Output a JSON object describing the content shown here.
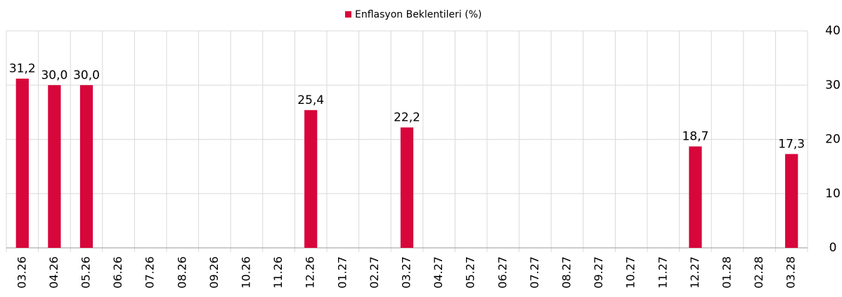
{
  "chart_data": {
    "type": "bar",
    "categories": [
      "03.26",
      "04.26",
      "05.26",
      "06.26",
      "07.26",
      "08.26",
      "09.26",
      "10.26",
      "11.26",
      "12.26",
      "01.27",
      "02.27",
      "03.27",
      "04.27",
      "05.27",
      "06.27",
      "07.27",
      "08.27",
      "09.27",
      "10.27",
      "11.27",
      "12.27",
      "01.28",
      "02.28",
      "03.28"
    ],
    "series": [
      {
        "name": "Enflasyon Beklentileri (%)",
        "color": "#d7063b",
        "values": [
          31.2,
          30.0,
          30.0,
          null,
          null,
          null,
          null,
          null,
          null,
          25.4,
          null,
          null,
          22.2,
          null,
          null,
          null,
          null,
          null,
          null,
          null,
          null,
          18.7,
          null,
          null,
          17.3
        ],
        "value_labels": [
          "31,2",
          "30,0",
          "30,0",
          null,
          null,
          null,
          null,
          null,
          null,
          "25,4",
          null,
          null,
          "22,2",
          null,
          null,
          null,
          null,
          null,
          null,
          null,
          null,
          "18,7",
          null,
          null,
          "17,3"
        ]
      }
    ],
    "ylim": [
      0,
      40
    ],
    "yticks": [
      0,
      10,
      20,
      30,
      40
    ],
    "grid": true,
    "legend": "top"
  }
}
